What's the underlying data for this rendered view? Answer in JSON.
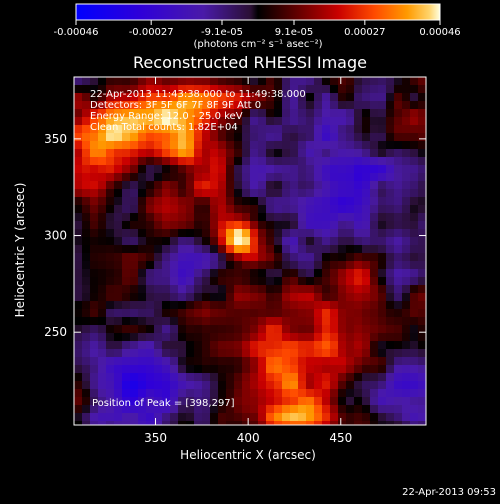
{
  "chart_data": {
    "type": "heatmap",
    "title": "Reconstructed RHESSI Image",
    "xlabel": "Heliocentric X (arcsec)",
    "ylabel": "Heliocentric Y (arcsec)",
    "xlim": [
      306,
      496
    ],
    "ylim": [
      202,
      382
    ],
    "x_ticks": [
      350,
      400,
      450
    ],
    "y_ticks": [
      250,
      300,
      350
    ],
    "annotations": {
      "time_range": "22-Apr-2013 11:43:38.000 to 11:49:38.000",
      "detectors": "Detectors: 3F 5F 6F 7F 8F 9F  Att 0",
      "energy_range": "Energy Range: 12.0 - 25.0 keV",
      "clean": "Clean    Total counts: 1.82E+04",
      "peak": "Position of Peak = [398,297]"
    },
    "footer_timestamp": "22-Apr-2013 09:53",
    "colorbar": {
      "min": -0.00046,
      "max": 0.00046,
      "tick_values": [
        -0.00046,
        -0.00027,
        -9.1e-05,
        9.1e-05,
        0.00027,
        0.00046
      ],
      "tick_labels": [
        "-0.00046",
        "-0.00027",
        "-9.1e-05",
        "9.1e-05",
        "0.00027",
        "0.00046"
      ],
      "units_label": "(photons cm⁻² s⁻¹ asec⁻²)",
      "colors": [
        {
          "pos": 0.0,
          "color": "#0000ff"
        },
        {
          "pos": 0.18,
          "color": "#2f00d8"
        },
        {
          "pos": 0.35,
          "color": "#4a1aa8"
        },
        {
          "pos": 0.48,
          "color": "#2a0f34"
        },
        {
          "pos": 0.5,
          "color": "#000000"
        },
        {
          "pos": 0.62,
          "color": "#6d0000"
        },
        {
          "pos": 0.72,
          "color": "#c90000"
        },
        {
          "pos": 0.82,
          "color": "#ff4a00"
        },
        {
          "pos": 0.91,
          "color": "#ff9a00"
        },
        {
          "pos": 0.97,
          "color": "#ffd36a"
        },
        {
          "pos": 1.0,
          "color": "#ffffe0"
        }
      ]
    },
    "peak": {
      "x": 398,
      "y": 297
    }
  }
}
